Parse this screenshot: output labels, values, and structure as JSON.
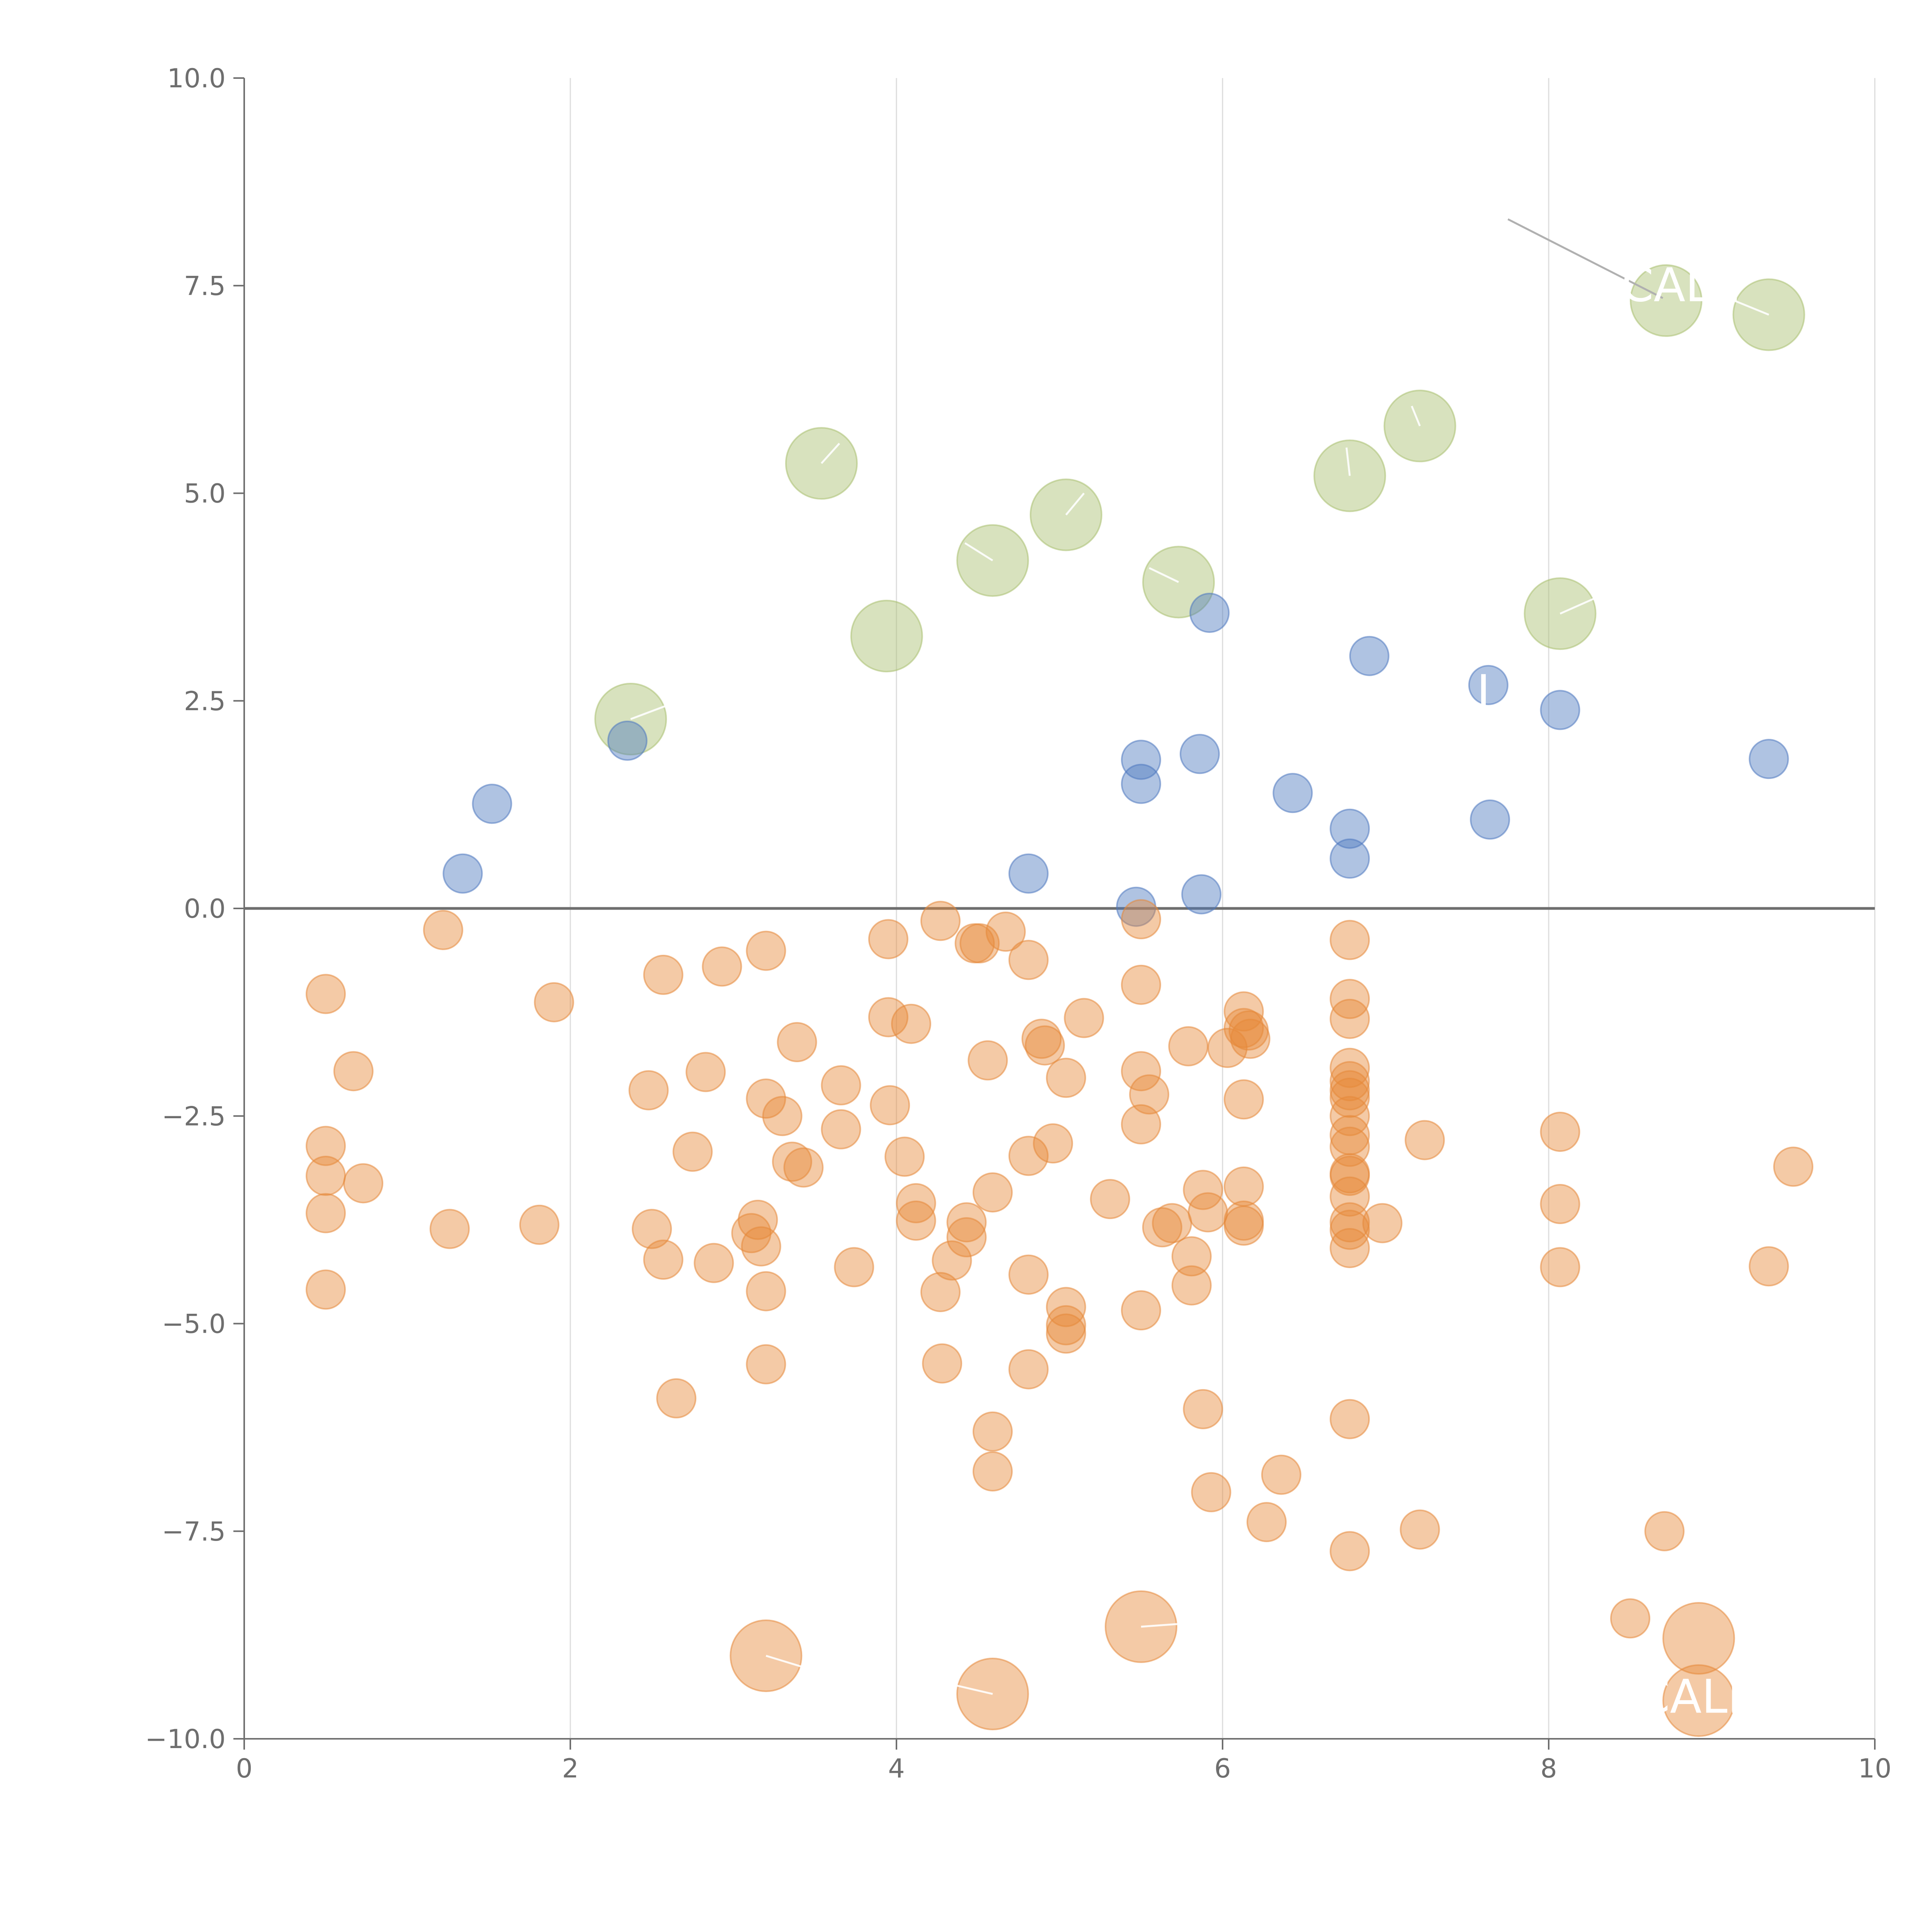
{
  "chart_data": {
    "type": "scatter",
    "title": "",
    "xlabel": "",
    "ylabel": "",
    "xlim": [
      0,
      10
    ],
    "ylim": [
      -10,
      10
    ],
    "x_ticks": [
      0,
      2,
      4,
      6,
      8,
      10
    ],
    "y_ticks": [
      10,
      7.5,
      5,
      2.5,
      0,
      -2.5,
      -5,
      -7.5,
      -10
    ],
    "x_tick_labels": [
      "0",
      "2",
      "4",
      "6",
      "8",
      "10"
    ],
    "y_tick_labels": [
      "10.0",
      "7.5",
      "5.0",
      "2.5",
      "0.0",
      "−2.5",
      "−5.0",
      "−7.5",
      "−10.0"
    ],
    "grid": "vertical",
    "zero_line": true,
    "series": [
      {
        "color": "#a9bf6f",
        "points": [
          [
            2.37,
            2.28
          ],
          [
            3.54,
            5.36
          ],
          [
            3.94,
            3.28
          ],
          [
            4.59,
            4.19
          ],
          [
            5.04,
            4.74
          ],
          [
            5.73,
            3.93
          ],
          [
            6.78,
            5.21
          ],
          [
            7.21,
            5.81
          ],
          [
            8.07,
            3.55
          ],
          [
            8.72,
            7.32
          ],
          [
            9.35,
            7.15
          ]
        ],
        "size": "large"
      },
      {
        "color": "#4e79bf",
        "points": [
          [
            1.34,
            0.42
          ],
          [
            1.52,
            1.26
          ],
          [
            2.35,
            2.02
          ],
          [
            4.81,
            0.42
          ],
          [
            5.47,
            0.02
          ],
          [
            5.5,
            1.79
          ],
          [
            5.5,
            1.5
          ],
          [
            5.86,
            1.86
          ],
          [
            5.87,
            0.17
          ],
          [
            5.92,
            3.56
          ],
          [
            6.43,
            1.39
          ],
          [
            6.78,
            0.96
          ],
          [
            6.78,
            0.6
          ],
          [
            6.9,
            3.04
          ],
          [
            7.63,
            2.69
          ],
          [
            7.64,
            1.07
          ],
          [
            8.07,
            2.39
          ],
          [
            9.35,
            1.8
          ]
        ],
        "size": "small"
      },
      {
        "color": "#e6893a",
        "points": [
          [
            0.5,
            -1.03
          ],
          [
            0.5,
            -2.86
          ],
          [
            0.5,
            -3.22
          ],
          [
            0.5,
            -3.67
          ],
          [
            0.5,
            -4.59
          ],
          [
            0.67,
            -1.96
          ],
          [
            0.73,
            -3.31
          ],
          [
            1.22,
            -0.26
          ],
          [
            1.26,
            -3.86
          ],
          [
            1.81,
            -3.81
          ],
          [
            1.9,
            -1.13
          ],
          [
            2.48,
            -2.19
          ],
          [
            2.5,
            -3.86
          ],
          [
            2.57,
            -4.23
          ],
          [
            2.57,
            -0.8
          ],
          [
            2.65,
            -5.9
          ],
          [
            2.75,
            -2.93
          ],
          [
            2.83,
            -1.97
          ],
          [
            2.88,
            -4.27
          ],
          [
            2.93,
            -0.7
          ],
          [
            3.11,
            -3.91
          ],
          [
            3.15,
            -3.75
          ],
          [
            3.17,
            -4.07
          ],
          [
            3.2,
            -0.51
          ],
          [
            3.2,
            -2.29
          ],
          [
            3.2,
            -4.61
          ],
          [
            3.2,
            -5.49
          ],
          [
            3.3,
            -2.5
          ],
          [
            3.36,
            -3.05
          ],
          [
            3.39,
            -1.61
          ],
          [
            3.43,
            -3.12
          ],
          [
            3.66,
            -2.13
          ],
          [
            3.66,
            -2.66
          ],
          [
            3.74,
            -4.32
          ],
          [
            3.95,
            -0.37
          ],
          [
            3.95,
            -1.31
          ],
          [
            3.96,
            -2.37
          ],
          [
            4.05,
            -2.99
          ],
          [
            4.09,
            -1.39
          ],
          [
            4.12,
            -3.55
          ],
          [
            4.12,
            -3.76
          ],
          [
            4.27,
            -0.15
          ],
          [
            4.27,
            -4.62
          ],
          [
            4.28,
            -5.48
          ],
          [
            4.34,
            -4.24
          ],
          [
            4.43,
            -3.78
          ],
          [
            4.43,
            -3.96
          ],
          [
            4.48,
            -0.42
          ],
          [
            4.51,
            -0.42
          ],
          [
            4.56,
            -1.83
          ],
          [
            4.59,
            -3.42
          ],
          [
            4.59,
            -6.3
          ],
          [
            4.59,
            -6.78
          ],
          [
            4.67,
            -0.28
          ],
          [
            4.81,
            -0.62
          ],
          [
            4.81,
            -2.98
          ],
          [
            4.81,
            -4.41
          ],
          [
            4.81,
            -5.55
          ],
          [
            4.89,
            -1.57
          ],
          [
            4.91,
            -1.65
          ],
          [
            4.96,
            -2.83
          ],
          [
            5.04,
            -2.04
          ],
          [
            5.04,
            -4.8
          ],
          [
            5.04,
            -5.02
          ],
          [
            5.04,
            -5.12
          ],
          [
            5.15,
            -1.32
          ],
          [
            5.31,
            -3.5
          ],
          [
            5.5,
            -0.13
          ],
          [
            5.5,
            -0.92
          ],
          [
            5.5,
            -1.96
          ],
          [
            5.5,
            -2.6
          ],
          [
            5.5,
            -4.84
          ],
          [
            5.55,
            -2.24
          ],
          [
            5.63,
            -3.84
          ],
          [
            5.69,
            -3.79
          ],
          [
            5.79,
            -1.66
          ],
          [
            5.81,
            -4.19
          ],
          [
            5.81,
            -4.54
          ],
          [
            5.88,
            -6.03
          ],
          [
            5.88,
            -3.39
          ],
          [
            5.91,
            -3.66
          ],
          [
            5.93,
            -7.03
          ],
          [
            6.03,
            -1.68
          ],
          [
            6.13,
            -1.24
          ],
          [
            6.13,
            -1.44
          ],
          [
            6.13,
            -2.3
          ],
          [
            6.13,
            -3.35
          ],
          [
            6.13,
            -3.76
          ],
          [
            6.13,
            -3.82
          ],
          [
            6.16,
            -1.47
          ],
          [
            6.17,
            -1.57
          ],
          [
            6.27,
            -7.39
          ],
          [
            6.36,
            -6.82
          ],
          [
            6.78,
            -0.38
          ],
          [
            6.78,
            -1.09
          ],
          [
            6.78,
            -1.33
          ],
          [
            6.78,
            -1.92
          ],
          [
            6.78,
            -2.08
          ],
          [
            6.78,
            -2.19
          ],
          [
            6.78,
            -2.28
          ],
          [
            6.78,
            -2.5
          ],
          [
            6.78,
            -2.73
          ],
          [
            6.78,
            -2.87
          ],
          [
            6.78,
            -3.19
          ],
          [
            6.78,
            -3.22
          ],
          [
            6.78,
            -3.47
          ],
          [
            6.78,
            -3.78
          ],
          [
            6.78,
            -3.87
          ],
          [
            6.78,
            -4.09
          ],
          [
            6.78,
            -6.15
          ],
          [
            6.78,
            -7.74
          ],
          [
            6.98,
            -3.79
          ],
          [
            7.21,
            -7.48
          ],
          [
            7.24,
            -2.79
          ],
          [
            8.07,
            -2.69
          ],
          [
            8.07,
            -3.56
          ],
          [
            8.07,
            -4.32
          ],
          [
            8.5,
            -8.55
          ],
          [
            8.71,
            -7.5
          ],
          [
            9.35,
            -4.31
          ],
          [
            9.5,
            -3.11
          ]
        ],
        "size": "small"
      },
      {
        "color": "#e6893a",
        "points": [
          [
            3.2,
            -9.0
          ],
          [
            4.59,
            -9.46
          ],
          [
            5.5,
            -8.65
          ],
          [
            8.92,
            -8.79
          ],
          [
            8.92,
            -9.54
          ]
        ],
        "size": "large"
      }
    ],
    "annotations": [
      {
        "text": "CALL",
        "x": 8.8,
        "y": 7.5
      },
      {
        "text": "CALL",
        "x": 8.9,
        "y": -9.5
      },
      {
        "text": "I",
        "x": 7.6,
        "y": 2.6
      }
    ]
  }
}
